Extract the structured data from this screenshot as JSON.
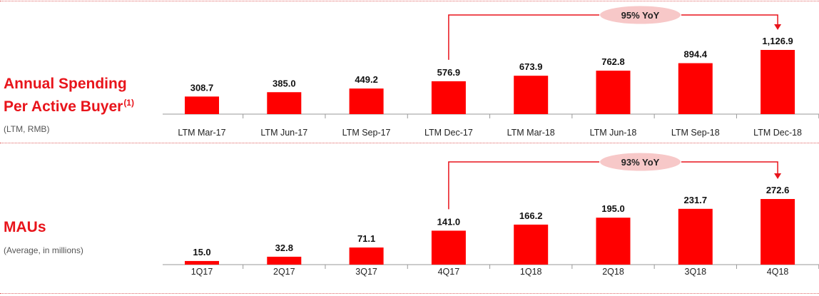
{
  "colors": {
    "bar": "#ff0000",
    "accent": "#e8141b",
    "bubble": "#f7c8c8",
    "axis": "#999999"
  },
  "chart_data": [
    {
      "type": "bar",
      "title": "Annual Spending Per Active Buyer",
      "title_sup": "(1)",
      "subtitle": "(LTM, RMB)",
      "categories": [
        "LTM Mar-17",
        "LTM Jun-17",
        "LTM Sep-17",
        "LTM Dec-17",
        "LTM Mar-18",
        "LTM Jun-18",
        "LTM Sep-18",
        "LTM Dec-18"
      ],
      "values": [
        308.7,
        385.0,
        449.2,
        576.9,
        673.9,
        762.8,
        894.4,
        1126.9
      ],
      "value_labels": [
        "308.7",
        "385.0",
        "449.2",
        "576.9",
        "673.9",
        "762.8",
        "894.4",
        "1,126.9"
      ],
      "annotation": {
        "text": "95% YoY",
        "from_index": 3,
        "to_index": 7
      },
      "grid": false
    },
    {
      "type": "bar",
      "title": "MAUs",
      "subtitle": "(Average, in millions)",
      "categories": [
        "1Q17",
        "2Q17",
        "3Q17",
        "4Q17",
        "1Q18",
        "2Q18",
        "3Q18",
        "4Q18"
      ],
      "values": [
        15.0,
        32.8,
        71.1,
        141.0,
        166.2,
        195.0,
        231.7,
        272.6
      ],
      "value_labels": [
        "15.0",
        "32.8",
        "71.1",
        "141.0",
        "166.2",
        "195.0",
        "231.7",
        "272.6"
      ],
      "annotation": {
        "text": "93% YoY",
        "from_index": 3,
        "to_index": 7
      },
      "grid": false
    }
  ]
}
